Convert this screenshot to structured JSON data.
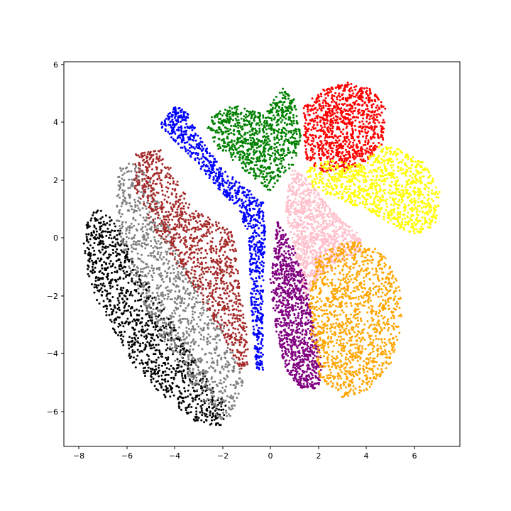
{
  "chart_data": {
    "type": "scatter",
    "title": "",
    "xlabel": "",
    "ylabel": "",
    "xlim": [
      -8.6,
      7.9
    ],
    "ylim": [
      -7.2,
      6.1
    ],
    "x_ticks": [
      -8,
      -6,
      -4,
      -2,
      0,
      2,
      4,
      6
    ],
    "y_ticks": [
      -6,
      -4,
      -2,
      0,
      2,
      4,
      6
    ],
    "x_tick_labels": [
      "−8",
      "−6",
      "−4",
      "−2",
      "0",
      "2",
      "4",
      "6"
    ],
    "y_tick_labels": [
      "−6",
      "−4",
      "−2",
      "0",
      "2",
      "4",
      "6"
    ],
    "grid": false,
    "legend": "none",
    "series": [
      {
        "color": "#000000",
        "count": 1100,
        "polygon": [
          [
            -7.7,
            0.6
          ],
          [
            -7.1,
            1.1
          ],
          [
            -6.3,
            0.4
          ],
          [
            -5.6,
            -1.0
          ],
          [
            -4.6,
            -2.2
          ],
          [
            -3.6,
            -3.6
          ],
          [
            -2.7,
            -4.8
          ],
          [
            -1.8,
            -5.8
          ],
          [
            -2.0,
            -6.5
          ],
          [
            -3.0,
            -6.4
          ],
          [
            -4.3,
            -5.6
          ],
          [
            -5.6,
            -4.5
          ],
          [
            -6.5,
            -3.2
          ],
          [
            -7.4,
            -1.9
          ],
          [
            -7.8,
            -0.6
          ]
        ]
      },
      {
        "color": "#808080",
        "count": 1100,
        "polygon": [
          [
            -6.4,
            2.4
          ],
          [
            -5.7,
            2.7
          ],
          [
            -5.0,
            2.0
          ],
          [
            -4.4,
            0.8
          ],
          [
            -3.7,
            -0.8
          ],
          [
            -2.6,
            -2.1
          ],
          [
            -1.6,
            -3.6
          ],
          [
            -1.1,
            -5.0
          ],
          [
            -1.6,
            -6.2
          ],
          [
            -2.2,
            -6.3
          ],
          [
            -3.0,
            -5.4
          ],
          [
            -4.0,
            -4.2
          ],
          [
            -5.0,
            -2.8
          ],
          [
            -5.9,
            -1.0
          ],
          [
            -6.4,
            0.6
          ]
        ]
      },
      {
        "color": "#a52a2a",
        "count": 1100,
        "polygon": [
          [
            -5.6,
            2.9
          ],
          [
            -4.6,
            3.1
          ],
          [
            -4.0,
            2.2
          ],
          [
            -3.2,
            1.0
          ],
          [
            -2.1,
            0.5
          ],
          [
            -1.5,
            0.2
          ],
          [
            -1.3,
            -1.5
          ],
          [
            -1.0,
            -3.0
          ],
          [
            -0.9,
            -4.4
          ],
          [
            -1.2,
            -4.6
          ],
          [
            -1.9,
            -3.5
          ],
          [
            -2.8,
            -2.2
          ],
          [
            -3.8,
            -1.0
          ],
          [
            -4.9,
            0.4
          ],
          [
            -5.7,
            1.8
          ]
        ]
      },
      {
        "color": "#0000ff",
        "count": 900,
        "polygon": [
          [
            -4.6,
            3.9
          ],
          [
            -4.0,
            4.6
          ],
          [
            -3.5,
            4.4
          ],
          [
            -2.8,
            3.3
          ],
          [
            -2.0,
            2.4
          ],
          [
            -1.1,
            1.8
          ],
          [
            -0.3,
            1.3
          ],
          [
            -0.2,
            0.2
          ],
          [
            -0.3,
            -2.0
          ],
          [
            -0.3,
            -4.6
          ],
          [
            -0.6,
            -4.5
          ],
          [
            -0.8,
            -2.2
          ],
          [
            -0.9,
            0.0
          ],
          [
            -1.3,
            1.0
          ],
          [
            -2.3,
            1.8
          ],
          [
            -3.2,
            2.7
          ],
          [
            -4.2,
            3.5
          ]
        ]
      },
      {
        "color": "#008000",
        "count": 900,
        "polygon": [
          [
            -2.4,
            4.3
          ],
          [
            -1.5,
            4.6
          ],
          [
            -0.3,
            4.3
          ],
          [
            0.5,
            5.2
          ],
          [
            1.0,
            4.8
          ],
          [
            1.3,
            3.4
          ],
          [
            1.0,
            2.5
          ],
          [
            0.4,
            2.1
          ],
          [
            0.0,
            1.6
          ],
          [
            -0.6,
            2.0
          ],
          [
            -1.4,
            2.6
          ],
          [
            -2.2,
            3.1
          ],
          [
            -2.6,
            3.8
          ]
        ]
      },
      {
        "color": "#ff0000",
        "count": 1000,
        "polygon": [
          [
            1.4,
            4.6
          ],
          [
            2.3,
            5.2
          ],
          [
            3.3,
            5.4
          ],
          [
            4.2,
            5.2
          ],
          [
            4.8,
            4.5
          ],
          [
            4.7,
            3.3
          ],
          [
            4.0,
            2.6
          ],
          [
            3.0,
            2.3
          ],
          [
            2.1,
            2.3
          ],
          [
            1.5,
            2.7
          ],
          [
            1.4,
            3.6
          ]
        ]
      },
      {
        "color": "#ffff00",
        "count": 1000,
        "polygon": [
          [
            1.4,
            2.4
          ],
          [
            2.5,
            2.7
          ],
          [
            3.8,
            2.6
          ],
          [
            4.7,
            3.3
          ],
          [
            5.6,
            3.0
          ],
          [
            6.4,
            2.6
          ],
          [
            7.1,
            1.6
          ],
          [
            6.9,
            0.5
          ],
          [
            6.2,
            0.1
          ],
          [
            5.2,
            0.4
          ],
          [
            4.0,
            1.0
          ],
          [
            2.9,
            1.3
          ],
          [
            1.8,
            1.7
          ]
        ]
      },
      {
        "color": "#ffc0cb",
        "count": 1000,
        "polygon": [
          [
            0.9,
            2.4
          ],
          [
            1.5,
            2.1
          ],
          [
            2.5,
            1.0
          ],
          [
            3.6,
            0.2
          ],
          [
            4.0,
            -0.4
          ],
          [
            3.0,
            -0.8
          ],
          [
            2.0,
            -1.4
          ],
          [
            1.4,
            -2.2
          ],
          [
            1.2,
            -1.2
          ],
          [
            0.9,
            0.0
          ],
          [
            0.6,
            1.0
          ]
        ]
      },
      {
        "color": "#800080",
        "count": 1000,
        "polygon": [
          [
            0.3,
            0.6
          ],
          [
            0.9,
            -0.2
          ],
          [
            1.5,
            -1.5
          ],
          [
            1.8,
            -3.0
          ],
          [
            2.2,
            -4.3
          ],
          [
            2.0,
            -5.2
          ],
          [
            1.3,
            -5.2
          ],
          [
            0.6,
            -4.6
          ],
          [
            0.2,
            -3.0
          ],
          [
            0.0,
            -1.4
          ]
        ]
      },
      {
        "color": "#ffa500",
        "count": 1300,
        "polygon": [
          [
            1.9,
            -0.7
          ],
          [
            2.8,
            -0.2
          ],
          [
            3.9,
            -0.1
          ],
          [
            4.8,
            -0.6
          ],
          [
            5.4,
            -1.7
          ],
          [
            5.5,
            -3.1
          ],
          [
            5.0,
            -4.4
          ],
          [
            4.0,
            -5.3
          ],
          [
            3.0,
            -5.5
          ],
          [
            2.1,
            -4.9
          ],
          [
            1.7,
            -3.6
          ],
          [
            1.6,
            -2.2
          ]
        ]
      }
    ]
  }
}
